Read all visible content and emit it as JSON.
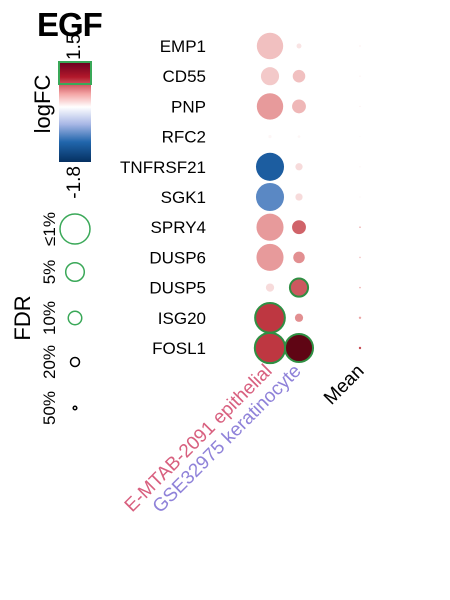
{
  "title": "EGF",
  "chart_data": {
    "type": "dot",
    "genes": [
      "EMP1",
      "CD55",
      "PNP",
      "RFC2",
      "TNFRSF21",
      "SGK1",
      "SPRY4",
      "DUSP6",
      "DUSP5",
      "ISG20",
      "FOSL1"
    ],
    "columns": [
      {
        "label": "E-MTAB-2091 epithelial",
        "color": "#d8607f"
      },
      {
        "label": "GSE32975 keratinocyte",
        "color": "#8f82d9"
      },
      {
        "label": "Mean",
        "color": "#000000"
      }
    ],
    "logFC": [
      [
        0.35,
        0.15,
        0.1
      ],
      [
        0.3,
        0.35,
        0.08
      ],
      [
        0.55,
        0.4,
        0.08
      ],
      [
        0.05,
        0.05,
        0.02
      ],
      [
        -1.3,
        0.2,
        0.05
      ],
      [
        -0.95,
        0.2,
        0.05
      ],
      [
        0.55,
        0.8,
        0.45
      ],
      [
        0.55,
        0.6,
        0.35
      ],
      [
        0.2,
        0.85,
        0.45
      ],
      [
        1.0,
        0.6,
        0.5
      ],
      [
        1.0,
        1.5,
        0.9
      ]
    ],
    "fdr_size": [
      [
        0.8,
        0.15,
        0.05
      ],
      [
        0.55,
        0.38,
        0.05
      ],
      [
        0.8,
        0.42,
        0.05
      ],
      [
        0.1,
        0.08,
        0.03
      ],
      [
        0.85,
        0.22,
        0.05
      ],
      [
        0.85,
        0.22,
        0.05
      ],
      [
        0.82,
        0.42,
        0.08
      ],
      [
        0.82,
        0.35,
        0.08
      ],
      [
        0.25,
        0.55,
        0.08
      ],
      [
        0.9,
        0.25,
        0.12
      ],
      [
        0.92,
        0.85,
        0.12
      ]
    ],
    "significant": [
      [
        false,
        false,
        false
      ],
      [
        false,
        false,
        false
      ],
      [
        false,
        false,
        false
      ],
      [
        false,
        false,
        false
      ],
      [
        false,
        false,
        false
      ],
      [
        false,
        false,
        false
      ],
      [
        false,
        false,
        false
      ],
      [
        false,
        false,
        false
      ],
      [
        false,
        true,
        false
      ],
      [
        true,
        false,
        false
      ],
      [
        true,
        true,
        false
      ]
    ],
    "color_legend": {
      "label": "logFC",
      "max_label": "1.5",
      "min_label": "-1.8",
      "min": -1.8,
      "max": 1.5
    },
    "size_legend": {
      "label": "FDR",
      "levels": [
        "≤1%",
        "5%",
        "10%",
        "20%",
        "50%"
      ],
      "sizes": [
        1.0,
        0.62,
        0.45,
        0.3,
        0.12
      ]
    }
  }
}
